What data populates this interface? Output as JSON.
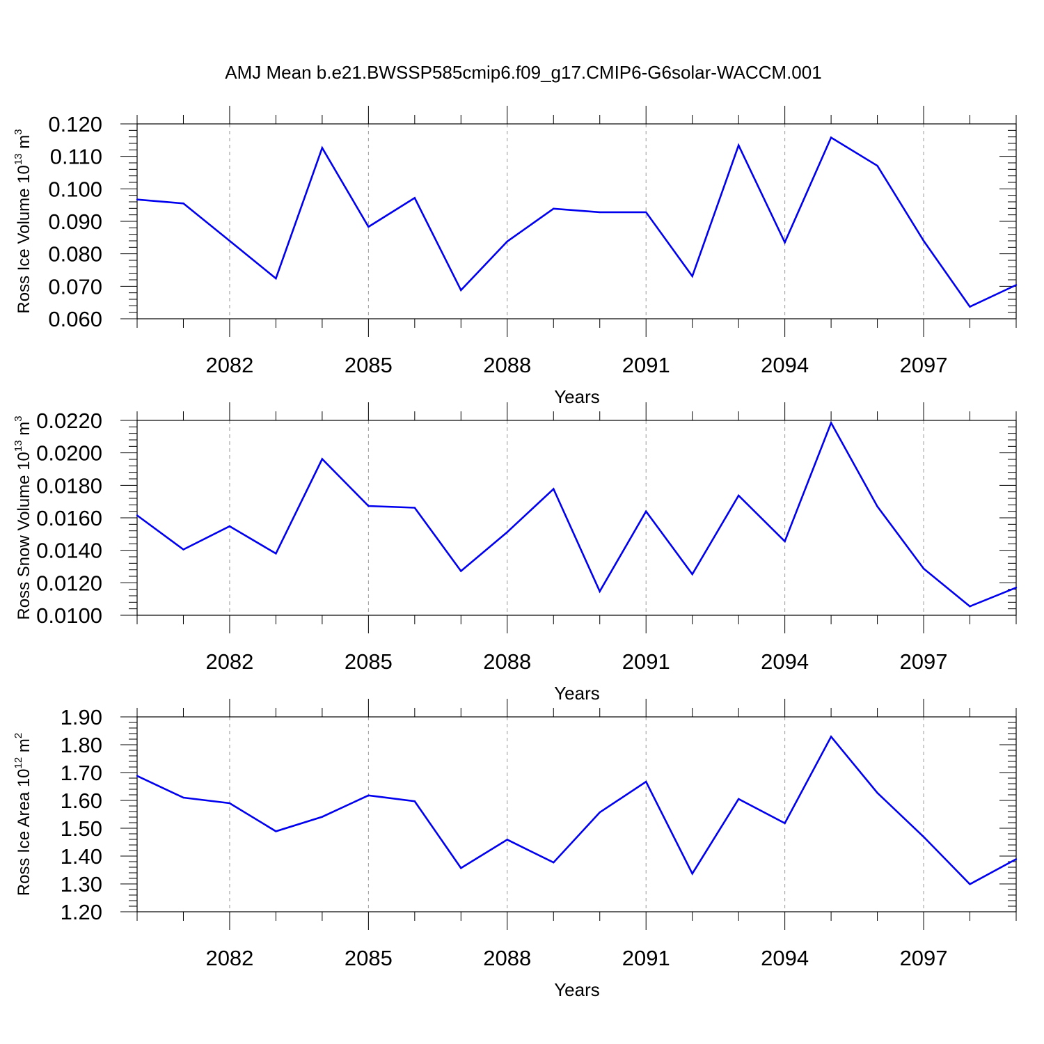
{
  "title": "AMJ Mean b.e21.BWSSP585cmip6.f09_g17.CMIP6-G6solar-WACCM.001",
  "colors": {
    "line": "#0000ee",
    "axis": "#000000",
    "grid": "#999999"
  },
  "chart_data": [
    {
      "type": "line",
      "ylabel": {
        "main": "Ross Ice Volume 10",
        "sup1": "13",
        "mid": " m",
        "sup2": "3"
      },
      "xlabel": "Years",
      "xlim": [
        2080,
        2099
      ],
      "ylim": [
        0.06,
        0.12
      ],
      "ytick_values": [
        0.06,
        0.07,
        0.08,
        0.09,
        0.1,
        0.11,
        0.12
      ],
      "ytick_labels": [
        "0.060",
        "0.070",
        "0.080",
        "0.090",
        "0.100",
        "0.110",
        "0.120"
      ],
      "xtick_values": [
        2082,
        2085,
        2088,
        2091,
        2094,
        2097
      ],
      "xtick_labels": [
        "2082",
        "2085",
        "2088",
        "2091",
        "2094",
        "2097"
      ],
      "grid": "vertical dashed at major x ticks",
      "x": [
        2080,
        2081,
        2082,
        2083,
        2084,
        2085,
        2086,
        2087,
        2088,
        2089,
        2090,
        2091,
        2092,
        2093,
        2094,
        2095,
        2096,
        2097,
        2098,
        2099
      ],
      "y": [
        0.0967,
        0.0955,
        0.084,
        0.0724,
        0.1126,
        0.0883,
        0.0972,
        0.0688,
        0.0838,
        0.0939,
        0.0928,
        0.0928,
        0.0731,
        0.1134,
        0.0835,
        0.1158,
        0.1071,
        0.084,
        0.0637,
        0.0704
      ]
    },
    {
      "type": "line",
      "ylabel": {
        "main": "Ross Snow Volume 10",
        "sup1": "13",
        "mid": " m",
        "sup2": "3"
      },
      "xlabel": "Years",
      "xlim": [
        2080,
        2099
      ],
      "ylim": [
        0.01,
        0.022
      ],
      "ytick_values": [
        0.01,
        0.012,
        0.014,
        0.016,
        0.018,
        0.02,
        0.022
      ],
      "ytick_labels": [
        "0.0100",
        "0.0120",
        "0.0140",
        "0.0160",
        "0.0180",
        "0.0200",
        "0.0220"
      ],
      "xtick_values": [
        2082,
        2085,
        2088,
        2091,
        2094,
        2097
      ],
      "xtick_labels": [
        "2082",
        "2085",
        "2088",
        "2091",
        "2094",
        "2097"
      ],
      "grid": "vertical dashed at major x ticks",
      "x": [
        2080,
        2081,
        2082,
        2083,
        2084,
        2085,
        2086,
        2087,
        2088,
        2089,
        2090,
        2091,
        2092,
        2093,
        2094,
        2095,
        2096,
        2097,
        2098,
        2099
      ],
      "y": [
        0.01615,
        0.01405,
        0.01548,
        0.0138,
        0.01962,
        0.01673,
        0.01662,
        0.01272,
        0.01512,
        0.01778,
        0.01147,
        0.0164,
        0.01253,
        0.01737,
        0.01455,
        0.02185,
        0.0167,
        0.01287,
        0.01055,
        0.0117
      ]
    },
    {
      "type": "line",
      "ylabel": {
        "main": "Ross Ice Area 10",
        "sup1": "12",
        "mid": " m",
        "sup2": "2"
      },
      "xlabel": "Years",
      "xlim": [
        2080,
        2099
      ],
      "ylim": [
        1.2,
        1.9
      ],
      "ytick_values": [
        1.2,
        1.3,
        1.4,
        1.5,
        1.6,
        1.7,
        1.8,
        1.9
      ],
      "ytick_labels": [
        "1.20",
        "1.30",
        "1.40",
        "1.50",
        "1.60",
        "1.70",
        "1.80",
        "1.90"
      ],
      "xtick_values": [
        2082,
        2085,
        2088,
        2091,
        2094,
        2097
      ],
      "xtick_labels": [
        "2082",
        "2085",
        "2088",
        "2091",
        "2094",
        "2097"
      ],
      "grid": "vertical dashed at major x ticks",
      "x": [
        2080,
        2081,
        2082,
        2083,
        2084,
        2085,
        2086,
        2087,
        2088,
        2089,
        2090,
        2091,
        2092,
        2093,
        2094,
        2095,
        2096,
        2097,
        2098,
        2099
      ],
      "y": [
        1.688,
        1.61,
        1.59,
        1.489,
        1.541,
        1.618,
        1.597,
        1.357,
        1.459,
        1.377,
        1.557,
        1.667,
        1.337,
        1.605,
        1.518,
        1.829,
        1.627,
        1.469,
        1.299,
        1.389
      ]
    }
  ]
}
